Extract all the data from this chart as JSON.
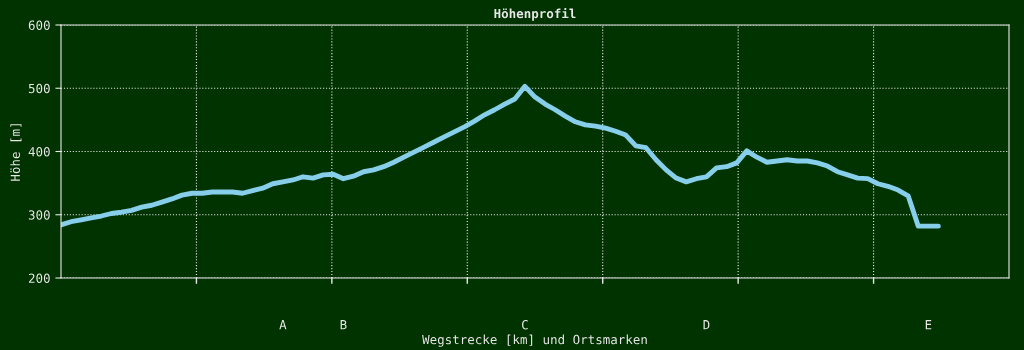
{
  "chart_data": {
    "type": "line",
    "title": "Höhenprofil",
    "xlabel": "Wegstrecke [km] und Ortsmarken",
    "ylabel": "Höhe [m]",
    "categories": [
      null,
      null,
      null,
      null,
      null,
      null,
      null,
      null,
      null,
      null,
      null,
      null,
      null,
      null,
      null,
      null,
      null,
      null,
      null,
      null,
      null,
      null,
      "A",
      null,
      null,
      null,
      null,
      null,
      "B",
      null,
      null,
      null,
      null,
      null,
      null,
      null,
      null,
      null,
      null,
      null,
      null,
      null,
      null,
      null,
      null,
      null,
      "C",
      null,
      null,
      null,
      null,
      null,
      null,
      null,
      null,
      null,
      null,
      null,
      null,
      null,
      null,
      null,
      null,
      null,
      "D",
      null,
      null,
      null,
      null,
      null,
      null,
      null,
      null,
      null,
      null,
      null,
      null,
      null,
      null,
      null,
      null,
      null,
      null,
      null,
      null,
      null,
      "E",
      null,
      null,
      null,
      null,
      null,
      null,
      null,
      null
    ],
    "series": [
      {
        "color": "#87ceeb",
        "values": [
          284,
          289,
          292,
          295,
          298,
          302,
          304,
          307,
          312,
          315,
          320,
          325,
          331,
          334,
          334,
          336,
          336,
          336,
          334,
          338,
          342,
          349,
          352,
          355,
          360,
          358,
          363,
          364,
          357,
          361,
          368,
          371,
          376,
          383,
          391,
          399,
          407,
          415,
          423,
          431,
          439,
          448,
          458,
          466,
          475,
          483,
          503,
          486,
          475,
          466,
          456,
          447,
          442,
          440,
          437,
          432,
          426,
          409,
          406,
          387,
          371,
          358,
          352,
          357,
          360,
          374,
          376,
          382,
          401,
          391,
          383,
          385,
          387,
          385,
          385,
          382,
          377,
          368,
          363,
          358,
          357,
          349,
          345,
          339,
          330,
          282,
          282,
          282,
          null,
          null,
          null,
          null,
          null,
          null,
          null
        ]
      }
    ],
    "ylim": [
      200,
      600
    ],
    "yticks": [
      200,
      300,
      400,
      500,
      600
    ],
    "grid": true,
    "marker": "none",
    "line_style": "solid"
  }
}
